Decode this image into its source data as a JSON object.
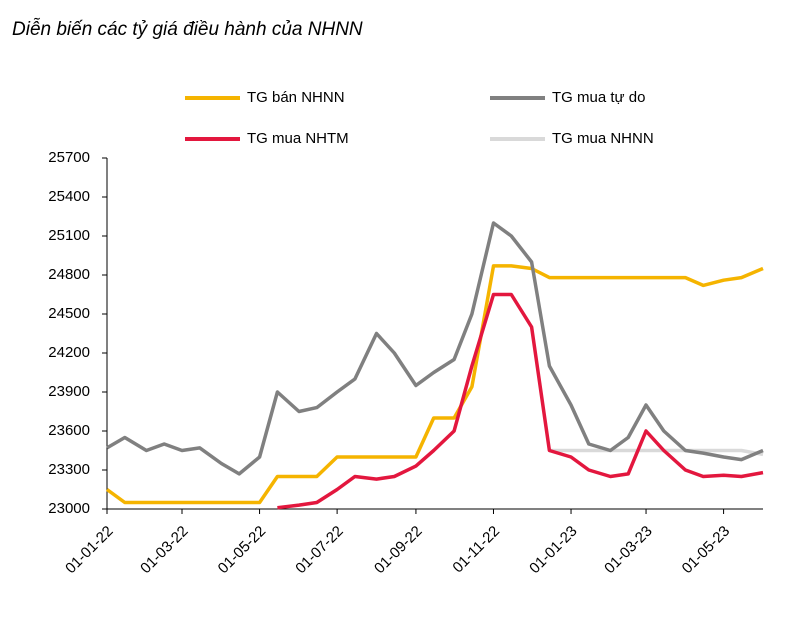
{
  "chart_data": {
    "type": "line",
    "title": "Diễn biến các tỷ giá điều hành của NHNN",
    "x": [
      "01-01-22",
      "15-01-22",
      "01-02-22",
      "15-02-22",
      "01-03-22",
      "15-03-22",
      "01-04-22",
      "15-04-22",
      "01-05-22",
      "15-05-22",
      "01-06-22",
      "15-06-22",
      "01-07-22",
      "15-07-22",
      "01-08-22",
      "15-08-22",
      "01-09-22",
      "15-09-22",
      "01-10-22",
      "15-10-22",
      "01-11-22",
      "15-11-22",
      "01-12-22",
      "15-12-22",
      "01-01-23",
      "15-01-23",
      "01-02-23",
      "15-02-23",
      "01-03-23",
      "15-03-23",
      "01-04-23",
      "15-04-23",
      "01-05-23",
      "15-05-23",
      "01-06-23"
    ],
    "xlim": [
      "01-01-22",
      "01-06-23"
    ],
    "xticks": [
      "01-01-22",
      "01-03-22",
      "01-05-22",
      "01-07-22",
      "01-09-22",
      "01-11-22",
      "01-01-23",
      "01-03-23",
      "01-05-23"
    ],
    "ylim": [
      23000,
      25700
    ],
    "yticks": [
      23000,
      23300,
      23600,
      23900,
      24200,
      24500,
      24800,
      25100,
      25400,
      25700
    ],
    "grid": false,
    "series": [
      {
        "name": "TG bán NHNN",
        "color": "#f5b400",
        "values": [
          23150,
          23050,
          23050,
          23050,
          23050,
          23050,
          23050,
          23050,
          23050,
          23250,
          23250,
          23250,
          23400,
          23400,
          23400,
          23400,
          23400,
          23700,
          23700,
          23940,
          24870,
          24870,
          24850,
          24780,
          24780,
          24780,
          24780,
          24780,
          24780,
          24780,
          24780,
          24720,
          24760,
          24780,
          24850
        ]
      },
      {
        "name": "TG mua tự do",
        "color": "#808080",
        "values": [
          23470,
          23550,
          23450,
          23500,
          23450,
          23470,
          23350,
          23270,
          23400,
          23900,
          23750,
          23780,
          23900,
          24000,
          24350,
          24200,
          23950,
          24050,
          24150,
          24500,
          25200,
          25100,
          24900,
          24100,
          23800,
          23500,
          23450,
          23550,
          23800,
          23600,
          23450,
          23430,
          23400,
          23380,
          23450
        ]
      },
      {
        "name": "TG mua NHTM",
        "color": "#e3173e",
        "values": [
          null,
          null,
          null,
          null,
          null,
          null,
          null,
          null,
          null,
          23010,
          23030,
          23050,
          23150,
          23250,
          23230,
          23250,
          23330,
          23450,
          23600,
          24100,
          24650,
          24650,
          24400,
          23450,
          23400,
          23300,
          23250,
          23270,
          23600,
          23450,
          23300,
          23250,
          23260,
          23250,
          23280
        ]
      },
      {
        "name": "TG mua NHNN",
        "color": "#d9d9d9",
        "values": [
          null,
          null,
          null,
          null,
          null,
          null,
          null,
          null,
          null,
          null,
          null,
          null,
          null,
          null,
          null,
          null,
          null,
          null,
          null,
          null,
          null,
          null,
          null,
          23450,
          23450,
          23450,
          23450,
          23450,
          23450,
          23450,
          23450,
          23450,
          23450,
          23450,
          23420
        ]
      }
    ]
  }
}
